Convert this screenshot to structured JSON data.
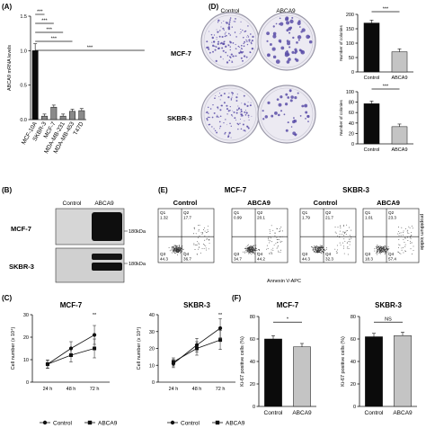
{
  "figure": {
    "panels": {
      "A": "(A)",
      "B": "(B)",
      "C": "(C)",
      "D": "(D)",
      "E": "(E)",
      "F": "(F)"
    },
    "sig": {
      "three": "***",
      "two": "**",
      "one": "*",
      "ns": "NS"
    },
    "groups": {
      "control": "Control",
      "abca9": "ABCA9"
    },
    "cells": {
      "mcf7": "MCF-7",
      "skbr3": "SKBR-3"
    },
    "colors": {
      "control_bar": "#0b0b0b",
      "abca9_bar": "#c4c4c4",
      "bar_a": "#8a8a8a",
      "colony": "#5a4da8"
    },
    "icons": {
      "colony_dot": "dot",
      "legend_circle": "circle",
      "legend_square": "square"
    }
  },
  "chart_data": [
    {
      "id": "A",
      "type": "bar",
      "ylabel": "ABCA9 mRNA levels",
      "yticks": [
        "0.0",
        "0.5",
        "1.0",
        "1.5"
      ],
      "ylim": [
        0,
        1.5
      ],
      "categories": [
        "MCF-10A",
        "SKBR-3",
        "MCF-7",
        "MDA-MB-231",
        "MDA-MB-453",
        "T47D"
      ],
      "values": [
        1.0,
        0.05,
        0.18,
        0.05,
        0.12,
        0.13
      ]
    },
    {
      "id": "D-MCF-7",
      "type": "bar",
      "ylabel": "Number of colonies",
      "yticks": [
        "0",
        "50",
        "100",
        "150",
        "200"
      ],
      "ylim": [
        0,
        200
      ],
      "categories": [
        "Control",
        "ABCA9"
      ],
      "values": [
        170,
        70
      ]
    },
    {
      "id": "D-SKBR-3",
      "type": "bar",
      "ylabel": "Number of colonies",
      "yticks": [
        "0",
        "20",
        "40",
        "60",
        "80",
        "100"
      ],
      "ylim": [
        0,
        100
      ],
      "categories": [
        "Control",
        "ABCA9"
      ],
      "values": [
        77,
        33
      ]
    },
    {
      "id": "E",
      "type": "scatter",
      "title_left": "MCF-7",
      "title_right": "SKBR-3",
      "xlabel": "Annexin V-APC",
      "ylabel": "propidium iodide",
      "plots": [
        {
          "group": "Control",
          "q": [
            {
              "id": "Q1",
              "v": "1.32"
            },
            {
              "id": "Q2",
              "v": "17.7"
            },
            {
              "id": "Q3",
              "v": "44.3"
            },
            {
              "id": "Q4",
              "v": "36.7"
            }
          ]
        },
        {
          "group": "ABCA9",
          "q": [
            {
              "id": "Q1",
              "v": "0.99"
            },
            {
              "id": "Q2",
              "v": "20.1"
            },
            {
              "id": "Q3",
              "v": "34.7"
            },
            {
              "id": "Q4",
              "v": "44.2"
            }
          ]
        },
        {
          "group": "Control",
          "q": [
            {
              "id": "Q1",
              "v": "1.79"
            },
            {
              "id": "Q2",
              "v": "21.7"
            },
            {
              "id": "Q3",
              "v": "44.3"
            },
            {
              "id": "Q4",
              "v": "32.3"
            }
          ]
        },
        {
          "group": "ABCA9",
          "q": [
            {
              "id": "Q1",
              "v": "1.01"
            },
            {
              "id": "Q2",
              "v": "23.3"
            },
            {
              "id": "Q3",
              "v": "18.3"
            },
            {
              "id": "Q4",
              "v": "57.4"
            }
          ]
        }
      ]
    },
    {
      "id": "C-MCF-7",
      "type": "line",
      "title": "MCF-7",
      "ylabel": "Cell number (x 10⁴)",
      "yticks": [
        "0",
        "10",
        "20",
        "30"
      ],
      "ylim": [
        0,
        30
      ],
      "categories": [
        "24 h",
        "48 h",
        "72 h"
      ],
      "series": [
        {
          "name": "Control",
          "values": [
            8,
            15,
            21
          ]
        },
        {
          "name": "ABCA9",
          "values": [
            8,
            12,
            15
          ]
        }
      ]
    },
    {
      "id": "C-SKBR-3",
      "type": "line",
      "title": "SKBR-3",
      "ylabel": "Cell number (x 10⁴)",
      "yticks": [
        "0",
        "10",
        "20",
        "30",
        "40"
      ],
      "ylim": [
        0,
        40
      ],
      "categories": [
        "24 h",
        "48 h",
        "72 h"
      ],
      "series": [
        {
          "name": "Control",
          "values": [
            11,
            22,
            32
          ]
        },
        {
          "name": "ABCA9",
          "values": [
            12,
            20,
            25
          ]
        }
      ]
    },
    {
      "id": "F-MCF-7",
      "type": "bar",
      "title": "MCF-7",
      "ylabel": "Ki-67 positive cells (%)",
      "yticks": [
        "0",
        "20",
        "40",
        "60",
        "80"
      ],
      "ylim": [
        0,
        80
      ],
      "categories": [
        "Control",
        "ABCA9"
      ],
      "values": [
        60,
        53
      ]
    },
    {
      "id": "F-SKBR-3",
      "type": "bar",
      "title": "SKBR-3",
      "ylabel": "Ki-67 positive cells (%)",
      "yticks": [
        "0",
        "20",
        "40",
        "60",
        "80"
      ],
      "ylim": [
        0,
        80
      ],
      "categories": [
        "Control",
        "ABCA9"
      ],
      "values": [
        62,
        63
      ]
    }
  ],
  "blot": {
    "bands": [
      "180kDa",
      "180kDa"
    ]
  }
}
